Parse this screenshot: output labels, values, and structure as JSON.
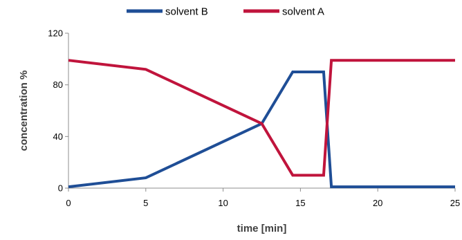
{
  "chart_data": {
    "type": "line",
    "xlabel": "time [min]",
    "ylabel": "concentration %",
    "xlim": [
      0,
      25
    ],
    "ylim": [
      0,
      120
    ],
    "xticks": [
      0,
      5,
      10,
      15,
      20,
      25
    ],
    "yticks": [
      0,
      40,
      80,
      120
    ],
    "grid": false,
    "legend_position": "top",
    "series": [
      {
        "name": "solvent B",
        "color": "#1f4e96",
        "x": [
          0,
          5,
          12.5,
          14.5,
          16.5,
          17,
          25
        ],
        "y": [
          1,
          8,
          50,
          90,
          90,
          1,
          1
        ]
      },
      {
        "name": "solvent A",
        "color": "#c0143c",
        "x": [
          0,
          5,
          12.5,
          14.5,
          16.5,
          17,
          25
        ],
        "y": [
          99,
          92,
          50,
          10,
          10,
          99,
          99
        ]
      }
    ]
  }
}
